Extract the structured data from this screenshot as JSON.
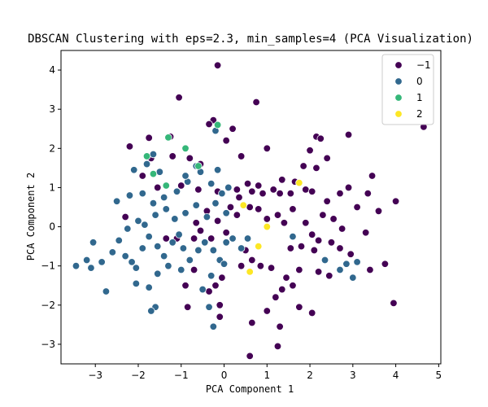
{
  "chart_data": {
    "type": "scatter",
    "title": "DBSCAN Clustering with eps=2.3, min_samples=4 (PCA Visualization)",
    "xlabel": "PCA Component 1",
    "ylabel": "PCA Component 2",
    "xlim": [
      -3.8,
      5.05
    ],
    "ylim": [
      -3.5,
      4.5
    ],
    "xticks": [
      -3,
      -2,
      -1,
      0,
      1,
      2,
      3,
      4,
      5
    ],
    "yticks": [
      -3,
      -2,
      -1,
      0,
      1,
      2,
      3,
      4
    ],
    "grid": false,
    "legend_position": "top-right",
    "series": [
      {
        "name": "−1",
        "color": "#440154",
        "points": [
          [
            -0.15,
            4.12
          ],
          [
            -1.05,
            3.3
          ],
          [
            0.75,
            3.18
          ],
          [
            -0.25,
            2.72
          ],
          [
            -0.35,
            2.62
          ],
          [
            0.2,
            2.5
          ],
          [
            -1.75,
            2.27
          ],
          [
            -1.25,
            2.3
          ],
          [
            0.05,
            2.2
          ],
          [
            -2.2,
            2.05
          ],
          [
            -1.7,
            1.75
          ],
          [
            -1.2,
            1.8
          ],
          [
            -0.8,
            1.75
          ],
          [
            -0.55,
            1.6
          ],
          [
            0.4,
            1.8
          ],
          [
            1.0,
            2.0
          ],
          [
            2.15,
            2.3
          ],
          [
            2.25,
            2.25
          ],
          [
            2.9,
            2.35
          ],
          [
            2.0,
            1.95
          ],
          [
            2.4,
            1.75
          ],
          [
            2.15,
            1.5
          ],
          [
            1.35,
            1.2
          ],
          [
            1.85,
            1.55
          ],
          [
            3.45,
            1.3
          ],
          [
            4.65,
            2.55
          ],
          [
            -1.9,
            1.3
          ],
          [
            -1.55,
            1.0
          ],
          [
            -1.0,
            1.05
          ],
          [
            -0.6,
            0.95
          ],
          [
            0.3,
            0.95
          ],
          [
            0.55,
            1.1
          ],
          [
            0.8,
            1.05
          ],
          [
            0.9,
            0.85
          ],
          [
            1.15,
            0.95
          ],
          [
            1.3,
            0.85
          ],
          [
            1.55,
            0.85
          ],
          [
            1.9,
            0.95
          ],
          [
            2.05,
            0.9
          ],
          [
            2.4,
            0.65
          ],
          [
            2.7,
            0.85
          ],
          [
            2.9,
            1.0
          ],
          [
            3.35,
            0.85
          ],
          [
            4.0,
            0.65
          ],
          [
            3.6,
            0.4
          ],
          [
            3.1,
            0.5
          ],
          [
            0.35,
            0.75
          ],
          [
            0.6,
            0.5
          ],
          [
            0.8,
            0.45
          ],
          [
            1.0,
            0.2
          ],
          [
            1.25,
            0.3
          ],
          [
            1.4,
            0.1
          ],
          [
            1.6,
            0.45
          ],
          [
            1.9,
            0.1
          ],
          [
            2.3,
            0.3
          ],
          [
            2.55,
            0.2
          ],
          [
            2.75,
            -0.05
          ],
          [
            3.3,
            -0.15
          ],
          [
            2.05,
            -0.2
          ],
          [
            2.2,
            -0.35
          ],
          [
            1.55,
            -0.55
          ],
          [
            1.8,
            -0.5
          ],
          [
            2.1,
            -0.6
          ],
          [
            2.5,
            -0.4
          ],
          [
            2.7,
            -0.55
          ],
          [
            2.95,
            -0.7
          ],
          [
            3.4,
            -1.1
          ],
          [
            3.75,
            -0.95
          ],
          [
            3.95,
            -1.95
          ],
          [
            -2.3,
            0.25
          ],
          [
            -1.1,
            -0.3
          ],
          [
            -0.55,
            -0.1
          ],
          [
            -0.3,
            -0.3
          ],
          [
            -0.15,
            0.15
          ],
          [
            0.05,
            -0.15
          ],
          [
            0.3,
            0.3
          ],
          [
            0.5,
            -0.6
          ],
          [
            0.65,
            -0.85
          ],
          [
            0.85,
            -1.0
          ],
          [
            1.1,
            -1.05
          ],
          [
            1.45,
            -1.3
          ],
          [
            1.75,
            -1.1
          ],
          [
            2.2,
            -1.15
          ],
          [
            2.45,
            -1.25
          ],
          [
            1.35,
            -1.6
          ],
          [
            1.6,
            -1.5
          ],
          [
            1.2,
            -1.8
          ],
          [
            1.0,
            -2.15
          ],
          [
            1.75,
            -2.05
          ],
          [
            2.05,
            -2.2
          ],
          [
            1.3,
            -2.55
          ],
          [
            0.65,
            -2.45
          ],
          [
            1.25,
            -3.05
          ],
          [
            0.6,
            -3.3
          ],
          [
            -0.1,
            -2.0
          ],
          [
            -0.35,
            -1.65
          ],
          [
            -0.2,
            -1.5
          ],
          [
            -0.05,
            -1.3
          ],
          [
            -0.7,
            -1.1
          ],
          [
            -0.9,
            -1.5
          ],
          [
            -1.35,
            -0.3
          ],
          [
            -0.7,
            -0.3
          ],
          [
            -0.85,
            -2.05
          ],
          [
            -0.1,
            -2.3
          ],
          [
            0.4,
            -1.0
          ],
          [
            0.15,
            0.5
          ],
          [
            -0.15,
            0.9
          ],
          [
            0.65,
            0.9
          ],
          [
            -0.4,
            0.4
          ],
          [
            -0.65,
            0.1
          ],
          [
            1.65,
            1.15
          ]
        ]
      },
      {
        "name": "0",
        "color": "#31688e",
        "points": [
          [
            -3.45,
            -1.0
          ],
          [
            -3.2,
            -0.85
          ],
          [
            -3.1,
            -1.05
          ],
          [
            -3.05,
            -0.4
          ],
          [
            -2.85,
            -0.9
          ],
          [
            -2.75,
            -1.65
          ],
          [
            -2.6,
            -0.65
          ],
          [
            -2.45,
            -0.35
          ],
          [
            -2.3,
            -0.75
          ],
          [
            -2.15,
            -0.9
          ],
          [
            -2.05,
            -1.05
          ],
          [
            -1.9,
            -0.55
          ],
          [
            -1.75,
            -0.25
          ],
          [
            -1.55,
            -0.5
          ],
          [
            -1.4,
            -0.75
          ],
          [
            -1.2,
            -0.4
          ],
          [
            -1.05,
            -0.2
          ],
          [
            -0.95,
            -0.55
          ],
          [
            -0.8,
            -0.85
          ],
          [
            -0.6,
            -0.6
          ],
          [
            -0.45,
            -0.4
          ],
          [
            -0.25,
            -0.6
          ],
          [
            -0.1,
            -0.85
          ],
          [
            0.05,
            -0.4
          ],
          [
            0.2,
            -0.3
          ],
          [
            0.4,
            -0.55
          ],
          [
            -2.25,
            -0.05
          ],
          [
            -2.0,
            0.15
          ],
          [
            -1.85,
            0.05
          ],
          [
            -1.6,
            0.3
          ],
          [
            -1.35,
            0.45
          ],
          [
            -1.15,
            0.2
          ],
          [
            -0.9,
            0.35
          ],
          [
            -0.65,
            0.55
          ],
          [
            -0.4,
            0.25
          ],
          [
            -0.2,
            0.6
          ],
          [
            0.05,
            0.35
          ],
          [
            -2.5,
            0.65
          ],
          [
            -2.2,
            0.8
          ],
          [
            -1.9,
            0.85
          ],
          [
            -1.65,
            0.6
          ],
          [
            -1.4,
            0.75
          ],
          [
            -1.1,
            0.9
          ],
          [
            -0.85,
            1.15
          ],
          [
            -0.55,
            1.4
          ],
          [
            -0.3,
            1.1
          ],
          [
            -0.05,
            0.85
          ],
          [
            0.1,
            1.0
          ],
          [
            -2.1,
            1.45
          ],
          [
            -1.8,
            1.6
          ],
          [
            -1.5,
            1.4
          ],
          [
            -0.9,
            1.3
          ],
          [
            -0.65,
            1.55
          ],
          [
            -0.15,
            1.45
          ],
          [
            -0.2,
            2.45
          ],
          [
            -1.65,
            1.85
          ],
          [
            -1.75,
            -1.55
          ],
          [
            -1.55,
            -1.2
          ],
          [
            -1.3,
            -1.0
          ],
          [
            -1.0,
            -1.1
          ],
          [
            -2.05,
            -1.45
          ],
          [
            -1.6,
            -2.05
          ],
          [
            -1.7,
            -2.15
          ],
          [
            -0.5,
            -1.6
          ],
          [
            -0.35,
            -2.05
          ],
          [
            -0.25,
            -2.55
          ],
          [
            -0.3,
            -1.25
          ],
          [
            0.0,
            -0.95
          ],
          [
            0.55,
            -0.3
          ],
          [
            1.6,
            -0.25
          ],
          [
            2.85,
            -0.95
          ],
          [
            3.0,
            -1.3
          ],
          [
            2.7,
            -1.1
          ],
          [
            3.1,
            -0.9
          ],
          [
            2.35,
            -0.85
          ]
        ]
      },
      {
        "name": "1",
        "color": "#35b779",
        "points": [
          [
            -1.3,
            2.28
          ],
          [
            -0.9,
            2.0
          ],
          [
            -0.15,
            2.6
          ],
          [
            -1.8,
            1.8
          ],
          [
            -1.65,
            1.35
          ],
          [
            -1.35,
            1.05
          ],
          [
            -0.6,
            1.55
          ]
        ]
      },
      {
        "name": "2",
        "color": "#fde725",
        "points": [
          [
            1.75,
            1.12
          ],
          [
            0.45,
            0.55
          ],
          [
            1.0,
            0.0
          ],
          [
            0.8,
            -0.5
          ],
          [
            0.6,
            -1.15
          ]
        ]
      }
    ]
  }
}
